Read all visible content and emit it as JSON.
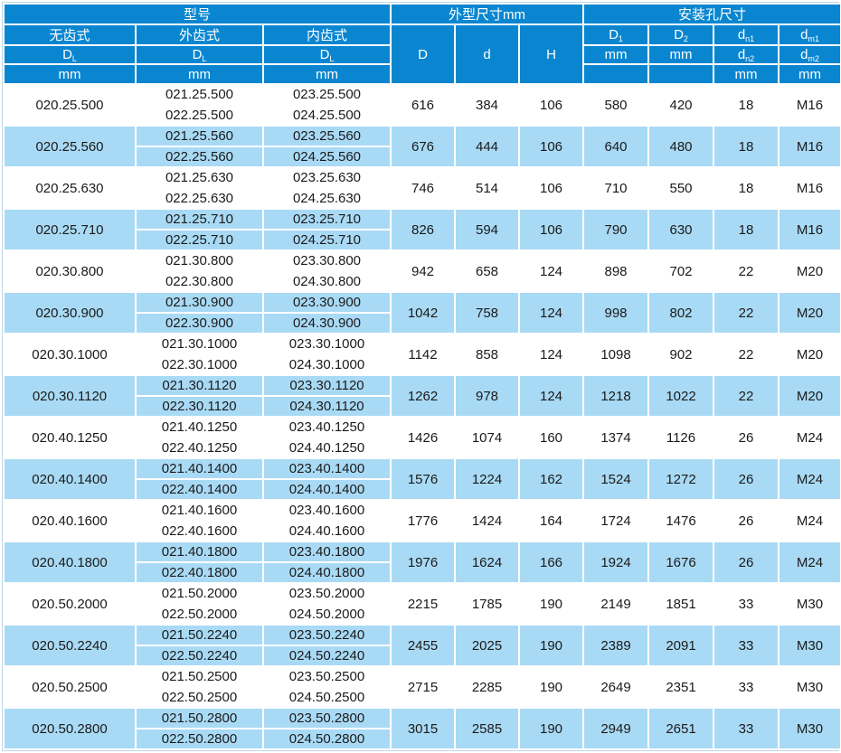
{
  "table": {
    "groups": {
      "model": "型号",
      "outer_dims": "外型尺寸mm",
      "mount_holes": "安装孔尺寸"
    },
    "model_columns": [
      {
        "type": "无齿式",
        "symbol": "D",
        "symbol_sub": "L",
        "unit": "mm"
      },
      {
        "type": "外齿式",
        "symbol": "D",
        "symbol_sub": "L",
        "unit": "mm"
      },
      {
        "type": "内齿式",
        "symbol": "D",
        "symbol_sub": "L",
        "unit": "mm"
      }
    ],
    "dim_columns": [
      "D",
      "d",
      "H"
    ],
    "hole_columns": [
      {
        "row1": {
          "main": "D",
          "sub": "1"
        },
        "row2": {
          "main": "mm",
          "sub": ""
        },
        "row3": ""
      },
      {
        "row1": {
          "main": "D",
          "sub": "2"
        },
        "row2": {
          "main": "mm",
          "sub": ""
        },
        "row3": ""
      },
      {
        "row1": {
          "main": "d",
          "sub": "n1"
        },
        "row2": {
          "main": "d",
          "sub": "n2"
        },
        "row3": "mm"
      },
      {
        "row1": {
          "main": "d",
          "sub": "m1"
        },
        "row2": {
          "main": "d",
          "sub": "m2"
        },
        "row3": "mm"
      }
    ],
    "rows": [
      {
        "gearless": "020.25.500",
        "external": [
          "021.25.500",
          "022.25.500"
        ],
        "internal": [
          "023.25.500",
          "024.25.500"
        ],
        "D": "616",
        "d": "384",
        "H": "106",
        "D1": "580",
        "D2": "420",
        "dn": "18",
        "dm": "M16"
      },
      {
        "gearless": "020.25.560",
        "external": [
          "021.25.560",
          "022.25.560"
        ],
        "internal": [
          "023.25.560",
          "024.25.560"
        ],
        "D": "676",
        "d": "444",
        "H": "106",
        "D1": "640",
        "D2": "480",
        "dn": "18",
        "dm": "M16"
      },
      {
        "gearless": "020.25.630",
        "external": [
          "021.25.630",
          "022.25.630"
        ],
        "internal": [
          "023.25.630",
          "024.25.630"
        ],
        "D": "746",
        "d": "514",
        "H": "106",
        "D1": "710",
        "D2": "550",
        "dn": "18",
        "dm": "M16"
      },
      {
        "gearless": "020.25.710",
        "external": [
          "021.25.710",
          "022.25.710"
        ],
        "internal": [
          "023.25.710",
          "024.25.710"
        ],
        "D": "826",
        "d": "594",
        "H": "106",
        "D1": "790",
        "D2": "630",
        "dn": "18",
        "dm": "M16"
      },
      {
        "gearless": "020.30.800",
        "external": [
          "021.30.800",
          "022.30.800"
        ],
        "internal": [
          "023.30.800",
          "024.30.800"
        ],
        "D": "942",
        "d": "658",
        "H": "124",
        "D1": "898",
        "D2": "702",
        "dn": "22",
        "dm": "M20"
      },
      {
        "gearless": "020.30.900",
        "external": [
          "021.30.900",
          "022.30.900"
        ],
        "internal": [
          "023.30.900",
          "024.30.900"
        ],
        "D": "1042",
        "d": "758",
        "H": "124",
        "D1": "998",
        "D2": "802",
        "dn": "22",
        "dm": "M20"
      },
      {
        "gearless": "020.30.1000",
        "external": [
          "021.30.1000",
          "022.30.1000"
        ],
        "internal": [
          "023.30.1000",
          "024.30.1000"
        ],
        "D": "1142",
        "d": "858",
        "H": "124",
        "D1": "1098",
        "D2": "902",
        "dn": "22",
        "dm": "M20"
      },
      {
        "gearless": "020.30.1120",
        "external": [
          "021.30.1120",
          "022.30.1120"
        ],
        "internal": [
          "023.30.1120",
          "024.30.1120"
        ],
        "D": "1262",
        "d": "978",
        "H": "124",
        "D1": "1218",
        "D2": "1022",
        "dn": "22",
        "dm": "M20"
      },
      {
        "gearless": "020.40.1250",
        "external": [
          "021.40.1250",
          "022.40.1250"
        ],
        "internal": [
          "023.40.1250",
          "024.40.1250"
        ],
        "D": "1426",
        "d": "1074",
        "H": "160",
        "D1": "1374",
        "D2": "1126",
        "dn": "26",
        "dm": "M24"
      },
      {
        "gearless": "020.40.1400",
        "external": [
          "021.40.1400",
          "022.40.1400"
        ],
        "internal": [
          "023.40.1400",
          "024.40.1400"
        ],
        "D": "1576",
        "d": "1224",
        "H": "162",
        "D1": "1524",
        "D2": "1272",
        "dn": "26",
        "dm": "M24"
      },
      {
        "gearless": "020.40.1600",
        "external": [
          "021.40.1600",
          "022.40.1600"
        ],
        "internal": [
          "023.40.1600",
          "024.40.1600"
        ],
        "D": "1776",
        "d": "1424",
        "H": "164",
        "D1": "1724",
        "D2": "1476",
        "dn": "26",
        "dm": "M24"
      },
      {
        "gearless": "020.40.1800",
        "external": [
          "021.40.1800",
          "022.40.1800"
        ],
        "internal": [
          "023.40.1800",
          "024.40.1800"
        ],
        "D": "1976",
        "d": "1624",
        "H": "166",
        "D1": "1924",
        "D2": "1676",
        "dn": "26",
        "dm": "M24"
      },
      {
        "gearless": "020.50.2000",
        "external": [
          "021.50.2000",
          "022.50.2000"
        ],
        "internal": [
          "023.50.2000",
          "024.50.2000"
        ],
        "D": "2215",
        "d": "1785",
        "H": "190",
        "D1": "2149",
        "D2": "1851",
        "dn": "33",
        "dm": "M30"
      },
      {
        "gearless": "020.50.2240",
        "external": [
          "021.50.2240",
          "022.50.2240"
        ],
        "internal": [
          "023.50.2240",
          "024.50.2240"
        ],
        "D": "2455",
        "d": "2025",
        "H": "190",
        "D1": "2389",
        "D2": "2091",
        "dn": "33",
        "dm": "M30"
      },
      {
        "gearless": "020.50.2500",
        "external": [
          "021.50.2500",
          "022.50.2500"
        ],
        "internal": [
          "023.50.2500",
          "024.50.2500"
        ],
        "D": "2715",
        "d": "2285",
        "H": "190",
        "D1": "2649",
        "D2": "2351",
        "dn": "33",
        "dm": "M30"
      },
      {
        "gearless": "020.50.2800",
        "external": [
          "021.50.2800",
          "022.50.2800"
        ],
        "internal": [
          "023.50.2800",
          "024.50.2800"
        ],
        "D": "3015",
        "d": "2585",
        "H": "190",
        "D1": "2949",
        "D2": "2651",
        "dn": "33",
        "dm": "M30"
      }
    ]
  },
  "colors": {
    "header_bg": "#0a86d0",
    "row_alt_bg": "#a9daf5",
    "grid_line": "#ffffff",
    "outer_border": "#bfd7e8",
    "body_text": "#1a1a1a",
    "header_text": "#ffffff"
  }
}
